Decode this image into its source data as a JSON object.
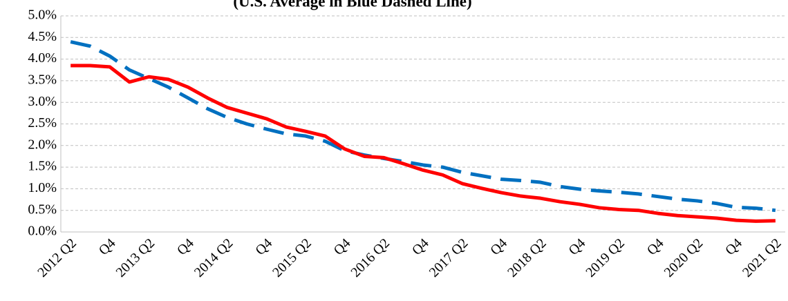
{
  "chart_data": {
    "type": "line",
    "title": "(U.S. Average in Blue Dashed Line)",
    "categories": [
      "2012 Q2",
      null,
      "Q4",
      null,
      "2013 Q2",
      null,
      "Q4",
      null,
      "2014 Q2",
      null,
      "Q4",
      null,
      "2015 Q2",
      null,
      "Q4",
      null,
      "2016 Q2",
      null,
      "Q4",
      null,
      "2017 Q2",
      null,
      "Q4",
      null,
      "2018 Q2",
      null,
      "Q4",
      null,
      "2019 Q2",
      null,
      "Q4",
      null,
      "2020 Q2",
      null,
      "Q4",
      null,
      "2021 Q2"
    ],
    "series": [
      {
        "color": "#0070c0",
        "dashed": true,
        "values": [
          4.4,
          4.3,
          4.07,
          3.75,
          3.55,
          3.35,
          3.1,
          2.85,
          2.65,
          2.5,
          2.38,
          2.27,
          2.22,
          2.1,
          1.88,
          1.78,
          1.7,
          1.63,
          1.55,
          1.5,
          1.38,
          1.3,
          1.22,
          1.19,
          1.15,
          1.05,
          0.99,
          0.95,
          0.92,
          0.88,
          0.82,
          0.76,
          0.72,
          0.66,
          0.57,
          0.55,
          0.5
        ]
      },
      {
        "color": "#ff0000",
        "dashed": false,
        "values": [
          3.85,
          3.85,
          3.82,
          3.47,
          3.59,
          3.53,
          3.35,
          3.1,
          2.88,
          2.75,
          2.62,
          2.43,
          2.33,
          2.22,
          1.92,
          1.75,
          1.72,
          1.58,
          1.43,
          1.32,
          1.12,
          1.01,
          0.91,
          0.83,
          0.78,
          0.7,
          0.64,
          0.56,
          0.52,
          0.5,
          0.43,
          0.38,
          0.35,
          0.32,
          0.27,
          0.25,
          0.26
        ]
      }
    ],
    "ylim": [
      0,
      5
    ],
    "yticks": [
      {
        "value": 0,
        "label": "0.0%"
      },
      {
        "value": 0.5,
        "label": "0.5%"
      },
      {
        "value": 1,
        "label": "1.0%"
      },
      {
        "value": 1.5,
        "label": "1.5%"
      },
      {
        "value": 2,
        "label": "2.0%"
      },
      {
        "value": 2.5,
        "label": "2.5%"
      },
      {
        "value": 3,
        "label": "3.0%"
      },
      {
        "value": 3.5,
        "label": "3.5%"
      },
      {
        "value": 4,
        "label": "4.0%"
      },
      {
        "value": 4.5,
        "label": "4.5%"
      },
      {
        "value": 5,
        "label": "5.0%"
      }
    ],
    "grid": true
  }
}
